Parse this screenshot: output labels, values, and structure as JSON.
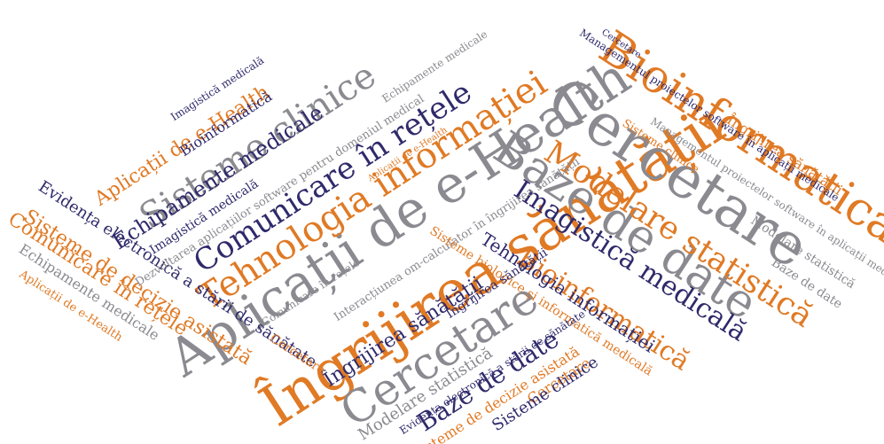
{
  "colors": {
    "orange": "#e07a25",
    "gray": "#8a8a90",
    "navy": "#2f2a6b"
  },
  "words": [
    {
      "text": "Îngrijirea sănătății",
      "color": "orange"
    },
    {
      "text": "Aplicații de e-Health",
      "color": "gray"
    },
    {
      "text": "Cercetare",
      "color": "gray"
    },
    {
      "text": "Bioinformatică",
      "color": "orange"
    },
    {
      "text": "Baze de date",
      "color": "gray"
    },
    {
      "text": "Tehnologia informației",
      "color": "orange"
    },
    {
      "text": "Comunicare în rețele",
      "color": "navy"
    },
    {
      "text": "Sisteme clinice",
      "color": "gray"
    },
    {
      "text": "Modelare statistică",
      "color": "orange"
    },
    {
      "text": "Imagistică medicală",
      "color": "navy"
    },
    {
      "text": "Bioinformatică",
      "color": "orange"
    },
    {
      "text": "Cercetare",
      "color": "gray"
    },
    {
      "text": "Echipamente medicale",
      "color": "navy"
    },
    {
      "text": "Aplicații de e-Health",
      "color": "orange"
    },
    {
      "text": "Îngrijirea sănătății",
      "color": "navy"
    },
    {
      "text": "Baze de date",
      "color": "navy"
    },
    {
      "text": "Tehnologia informației",
      "color": "navy"
    },
    {
      "text": "Interacțiunea om-calculator în îngrijirea sănătății",
      "color": "gray"
    },
    {
      "text": "Sisteme biologice și informatică medicală",
      "color": "orange"
    },
    {
      "text": "Evidența electronică a stării de sănătate",
      "color": "navy"
    },
    {
      "text": "Sisteme de decizie asistată",
      "color": "orange"
    },
    {
      "text": "Comunicare în rețele",
      "color": "orange"
    },
    {
      "text": "Echipamente medicale",
      "color": "gray"
    },
    {
      "text": "Aplicații de e-Health",
      "color": "orange"
    },
    {
      "text": "Modelare statistică",
      "color": "gray"
    },
    {
      "text": "Îngrijirea sănătății",
      "color": "orange"
    },
    {
      "text": "Modelare statistică",
      "color": "gray"
    },
    {
      "text": "Baze de date",
      "color": "gray"
    },
    {
      "text": "Managementul proiectelor software în aplicații medicale",
      "color": "gray"
    },
    {
      "text": "Sisteme clinice",
      "color": "orange"
    },
    {
      "text": "Sisteme de decizie asistată",
      "color": "orange"
    },
    {
      "text": "Cercetare",
      "color": "orange"
    },
    {
      "text": "Sisteme clinice",
      "color": "navy"
    },
    {
      "text": "Imagistică medicală",
      "color": "navy"
    },
    {
      "text": "Dezvoltarea aplicațiilor software pentru domeniul medical",
      "color": "gray"
    },
    {
      "text": "Bioinformatică",
      "color": "navy"
    },
    {
      "text": "Comunicare în rețele",
      "color": "gray"
    },
    {
      "text": "Echipamente medicale",
      "color": "gray"
    },
    {
      "text": "Cercetare",
      "color": "orange"
    },
    {
      "text": "Evidența electronică a stării de sănătate",
      "color": "navy"
    },
    {
      "text": "Aplicații de e-Health",
      "color": "orange"
    },
    {
      "text": "Imagistică medicală",
      "color": "navy"
    },
    {
      "text": "Managementul proiectelor software în aplicații medicale",
      "color": "navy"
    },
    {
      "text": "Îngrijirea sănătății",
      "color": "navy"
    },
    {
      "text": "Cercetare",
      "color": "navy"
    }
  ]
}
